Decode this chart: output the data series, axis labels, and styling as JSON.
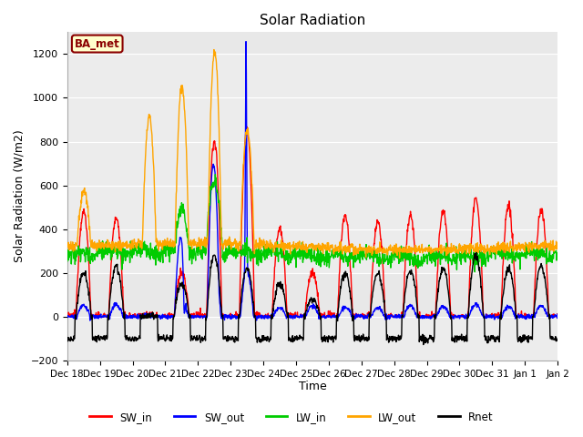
{
  "title": "Solar Radiation",
  "xlabel": "Time",
  "ylabel": "Solar Radiation (W/m2)",
  "ylim": [
    -200,
    1300
  ],
  "yticks": [
    -200,
    0,
    200,
    400,
    600,
    800,
    1000,
    1200
  ],
  "xtick_labels": [
    "Dec 18",
    "Dec 19",
    "Dec 20",
    "Dec 21",
    "Dec 22",
    "Dec 23",
    "Dec 24",
    "Dec 25",
    "Dec 26",
    "Dec 27",
    "Dec 28",
    "Dec 29",
    "Dec 30",
    "Dec 31",
    "Jan 1",
    "Jan 2"
  ],
  "legend_labels": [
    "SW_in",
    "SW_out",
    "LW_in",
    "LW_out",
    "Rnet"
  ],
  "colors": {
    "SW_in": "#FF0000",
    "SW_out": "#0000FF",
    "LW_in": "#00CC00",
    "LW_out": "#FFA500",
    "Rnet": "#000000"
  },
  "annotation_text": "BA_met",
  "annotation_color": "#8B0000",
  "annotation_bg": "#FFFFCC",
  "bg_color": "#E8E8E8",
  "stripe_color": "#F0F0F0"
}
